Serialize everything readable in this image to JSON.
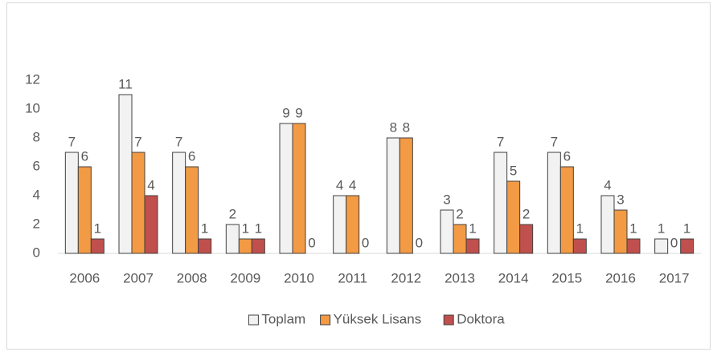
{
  "chart_data": {
    "type": "bar",
    "categories": [
      "2006",
      "2007",
      "2008",
      "2009",
      "2010",
      "2011",
      "2012",
      "2013",
      "2014",
      "2015",
      "2016",
      "2017"
    ],
    "series": [
      {
        "name": "Toplam",
        "color": "#f2f2f2",
        "values": [
          7,
          11,
          7,
          2,
          9,
          4,
          8,
          3,
          7,
          7,
          4,
          1
        ]
      },
      {
        "name": "Yüksek Lisans",
        "color": "#f39a45",
        "values": [
          6,
          7,
          6,
          1,
          9,
          4,
          8,
          2,
          5,
          6,
          3,
          0
        ]
      },
      {
        "name": "Doktora",
        "color": "#c0504d",
        "values": [
          1,
          4,
          1,
          1,
          0,
          0,
          0,
          1,
          2,
          1,
          1,
          1
        ]
      }
    ],
    "ylim": [
      0,
      12
    ],
    "yticks": [
      0,
      2,
      4,
      6,
      8,
      10,
      12
    ],
    "grid": false,
    "legend": "bottom"
  }
}
